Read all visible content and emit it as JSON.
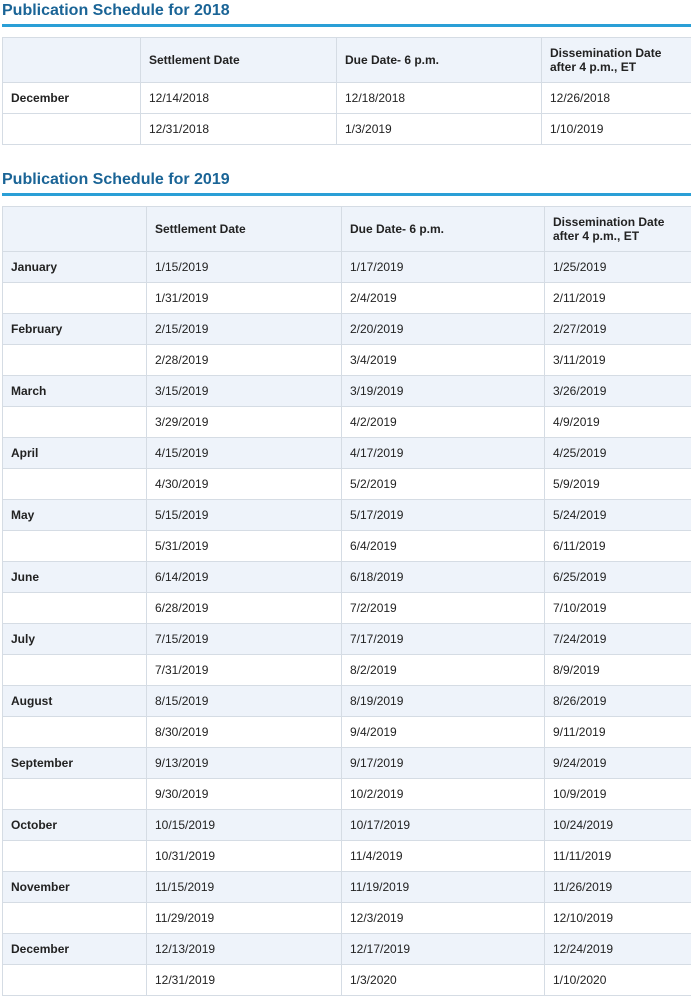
{
  "schedule_2018": {
    "title": "Publication Schedule for 2018",
    "headers": [
      "",
      "Settlement Date",
      "Due Date- 6 p.m.",
      "Dissemination Date after 4 p.m., ET"
    ],
    "rows": [
      {
        "month": "December",
        "settlement": "12/14/2018",
        "due": "12/18/2018",
        "dissemination": "12/26/2018"
      },
      {
        "month": "",
        "settlement": "12/31/2018",
        "due": "1/3/2019",
        "dissemination": "1/10/2019"
      }
    ]
  },
  "schedule_2019": {
    "title": "Publication Schedule for 2019",
    "headers": [
      "",
      "Settlement Date",
      "Due Date- 6 p.m.",
      "Dissemination Date after 4 p.m., ET"
    ],
    "rows": [
      {
        "month": "January",
        "settlement": "1/15/2019",
        "due": "1/17/2019",
        "dissemination": "1/25/2019"
      },
      {
        "month": "",
        "settlement": "1/31/2019",
        "due": "2/4/2019",
        "dissemination": "2/11/2019"
      },
      {
        "month": "February",
        "settlement": "2/15/2019",
        "due": "2/20/2019",
        "dissemination": "2/27/2019"
      },
      {
        "month": "",
        "settlement": "2/28/2019",
        "due": "3/4/2019",
        "dissemination": "3/11/2019"
      },
      {
        "month": "March",
        "settlement": "3/15/2019",
        "due": "3/19/2019",
        "dissemination": "3/26/2019"
      },
      {
        "month": "",
        "settlement": "3/29/2019",
        "due": "4/2/2019",
        "dissemination": "4/9/2019"
      },
      {
        "month": "April",
        "settlement": "4/15/2019",
        "due": "4/17/2019",
        "dissemination": "4/25/2019"
      },
      {
        "month": "",
        "settlement": "4/30/2019",
        "due": "5/2/2019",
        "dissemination": "5/9/2019"
      },
      {
        "month": "May",
        "settlement": "5/15/2019",
        "due": "5/17/2019",
        "dissemination": "5/24/2019"
      },
      {
        "month": "",
        "settlement": "5/31/2019",
        "due": "6/4/2019",
        "dissemination": "6/11/2019"
      },
      {
        "month": "June",
        "settlement": "6/14/2019",
        "due": "6/18/2019",
        "dissemination": "6/25/2019"
      },
      {
        "month": "",
        "settlement": "6/28/2019",
        "due": "7/2/2019",
        "dissemination": "7/10/2019"
      },
      {
        "month": "July",
        "settlement": "7/15/2019",
        "due": "7/17/2019",
        "dissemination": "7/24/2019"
      },
      {
        "month": "",
        "settlement": "7/31/2019",
        "due": "8/2/2019",
        "dissemination": "8/9/2019"
      },
      {
        "month": "August",
        "settlement": "8/15/2019",
        "due": "8/19/2019",
        "dissemination": "8/26/2019"
      },
      {
        "month": "",
        "settlement": "8/30/2019",
        "due": "9/4/2019",
        "dissemination": "9/11/2019"
      },
      {
        "month": "September",
        "settlement": "9/13/2019",
        "due": "9/17/2019",
        "dissemination": "9/24/2019"
      },
      {
        "month": "",
        "settlement": "9/30/2019",
        "due": "10/2/2019",
        "dissemination": "10/9/2019"
      },
      {
        "month": "October",
        "settlement": "10/15/2019",
        "due": "10/17/2019",
        "dissemination": "10/24/2019"
      },
      {
        "month": "",
        "settlement": "10/31/2019",
        "due": "11/4/2019",
        "dissemination": "11/11/2019"
      },
      {
        "month": "November",
        "settlement": "11/15/2019",
        "due": "11/19/2019",
        "dissemination": "11/26/2019"
      },
      {
        "month": "",
        "settlement": "11/29/2019",
        "due": "12/3/2019",
        "dissemination": "12/10/2019"
      },
      {
        "month": "December",
        "settlement": "12/13/2019",
        "due": "12/17/2019",
        "dissemination": "12/24/2019"
      },
      {
        "month": "",
        "settlement": "12/31/2019",
        "due": "1/3/2020",
        "dissemination": "1/10/2020"
      }
    ]
  }
}
